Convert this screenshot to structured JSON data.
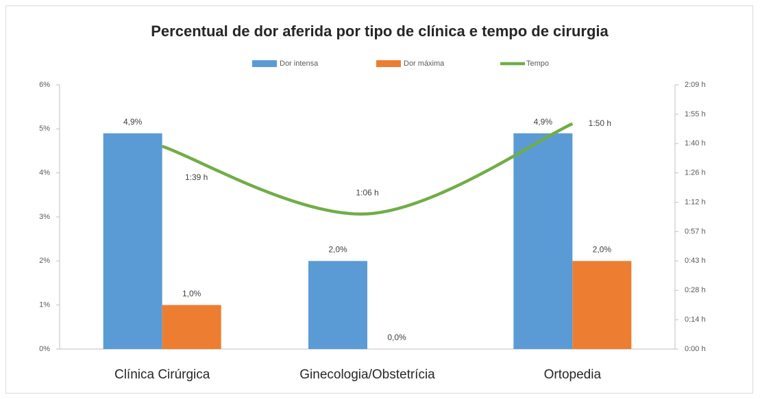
{
  "chart_data": {
    "type": "bar",
    "title": "Percentual de dor aferida por tipo de clínica e tempo de cirurgia",
    "categories": [
      "Clínica Cirúrgica",
      "Ginecologia/Obstetrícia",
      "Ortopedia"
    ],
    "series": [
      {
        "name": "Dor intensa",
        "type": "bar",
        "color": "#5b9bd5",
        "values": [
          4.9,
          2.0,
          4.9
        ],
        "value_labels": [
          "4,9%",
          "2,0%",
          "4,9%"
        ]
      },
      {
        "name": "Dor máxima",
        "type": "bar",
        "color": "#ed7d31",
        "values": [
          1.0,
          0.0,
          2.0
        ],
        "value_labels": [
          "1,0%",
          "0,0%",
          "2,0%"
        ]
      },
      {
        "name": "Tempo",
        "type": "line",
        "axis": "y2",
        "color": "#70ad47",
        "values": [
          99,
          66,
          110
        ],
        "value_labels": [
          "1:39 h",
          "1:06 h",
          "1:50 h"
        ]
      }
    ],
    "ylim": [
      0,
      6
    ],
    "yticks": [
      {
        "value": 0,
        "label": "0%"
      },
      {
        "value": 1,
        "label": "1%"
      },
      {
        "value": 2,
        "label": "2%"
      },
      {
        "value": 3,
        "label": "3%"
      },
      {
        "value": 4,
        "label": "4%"
      },
      {
        "value": 5,
        "label": "5%"
      },
      {
        "value": 6,
        "label": "6%"
      }
    ],
    "y2lim": [
      0,
      129
    ],
    "y2ticks": [
      {
        "value": 0,
        "label": "0:00 h"
      },
      {
        "value": 14.33,
        "label": "0:14 h"
      },
      {
        "value": 28.67,
        "label": "0:28 h"
      },
      {
        "value": 43,
        "label": "0:43 h"
      },
      {
        "value": 57.33,
        "label": "0:57 h"
      },
      {
        "value": 71.67,
        "label": "1:12 h"
      },
      {
        "value": 86,
        "label": "1:26 h"
      },
      {
        "value": 100.33,
        "label": "1:40 h"
      },
      {
        "value": 114.67,
        "label": "1:55 h"
      },
      {
        "value": 129,
        "label": "2:09 h"
      }
    ],
    "grid": false,
    "legend": "top"
  }
}
